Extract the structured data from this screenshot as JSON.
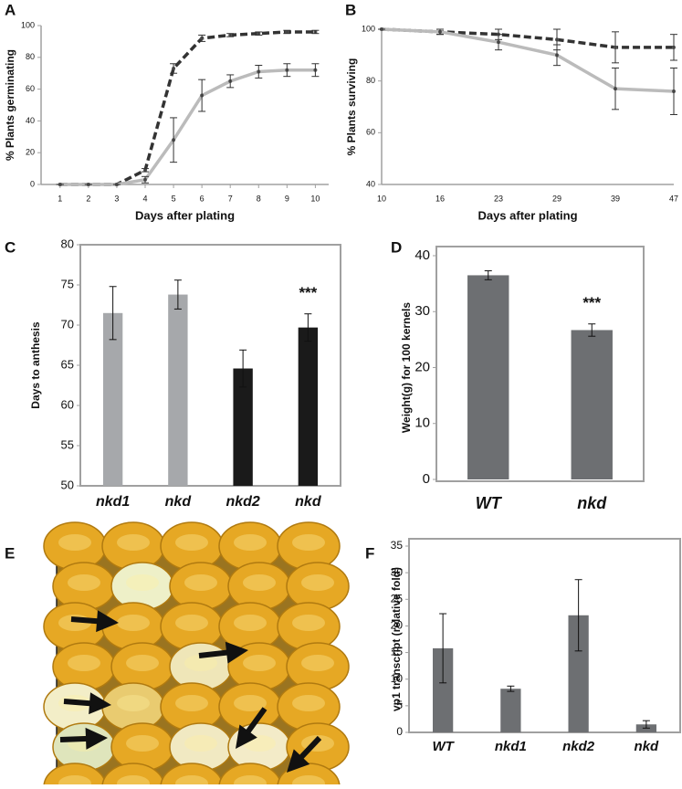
{
  "chart_data": [
    {
      "type": "line",
      "panel": "A",
      "ylabel": "% Plants germinating",
      "xlabel": "Days after plating",
      "x": [
        1,
        2,
        3,
        4,
        5,
        6,
        7,
        8,
        9,
        10
      ],
      "xlim": [
        0.33,
        10.47
      ],
      "xticks": [
        1,
        2,
        3,
        4,
        5,
        6,
        7,
        8,
        9,
        10
      ],
      "ylim": [
        0,
        100
      ],
      "yticks": [
        0,
        20,
        40,
        60,
        80,
        100
      ],
      "series": [
        {
          "color": "#333333",
          "line_style": "dashed",
          "values": [
            0,
            0,
            0,
            9,
            73,
            92,
            94,
            95,
            96,
            96
          ],
          "errors": [
            0,
            0,
            0,
            1,
            3,
            2,
            1,
            1,
            1,
            1
          ]
        },
        {
          "color": "#bbbbbb",
          "line_style": "solid",
          "values": [
            0,
            0,
            0,
            3,
            28,
            56,
            65,
            71,
            72,
            72
          ],
          "errors": [
            0,
            0,
            0,
            2,
            14,
            10,
            4,
            4,
            4,
            4
          ]
        }
      ]
    },
    {
      "type": "line",
      "panel": "B",
      "ylabel": "% Plants surviving",
      "xlabel": "Days after plating",
      "categories": [
        "10",
        "16",
        "23",
        "29",
        "39",
        "47"
      ],
      "ylim": [
        40,
        100
      ],
      "yticks": [
        40,
        60,
        80,
        100
      ],
      "series": [
        {
          "color": "#333333",
          "line_style": "dashed",
          "values": [
            100,
            99,
            98,
            96,
            93,
            93
          ],
          "errors": [
            0,
            1,
            2,
            4,
            6,
            5
          ]
        },
        {
          "color": "#bbbbbb",
          "line_style": "solid",
          "values": [
            100,
            99,
            95,
            90,
            77,
            76
          ],
          "errors": [
            0,
            1,
            3,
            4,
            8,
            9
          ]
        }
      ]
    },
    {
      "type": "bar",
      "panel": "C",
      "ylabel": "Days to anthesis",
      "annotation": "***",
      "categories": [
        "nkd1",
        "nkd",
        "nkd2",
        "nkd"
      ],
      "values": [
        71.5,
        73.8,
        64.6,
        69.7
      ],
      "errors": [
        3.3,
        1.8,
        2.3,
        1.7
      ],
      "colors": [
        "#a6a8ab",
        "#a6a8ab",
        "#1a1a1a",
        "#1a1a1a"
      ],
      "ylim": [
        50,
        80
      ],
      "yticks": [
        50,
        55,
        60,
        65,
        70,
        75,
        80
      ]
    },
    {
      "type": "bar",
      "panel": "D",
      "ylabel": "Weight(g) for 100 kernels",
      "annotation": "***",
      "categories": [
        "WT",
        "nkd"
      ],
      "values": [
        36.5,
        26.7
      ],
      "errors": [
        0.8,
        1.1
      ],
      "colors": [
        "#6d6f72",
        "#6d6f72"
      ],
      "ylim": [
        0,
        40
      ],
      "yticks": [
        0,
        10,
        20,
        30,
        40
      ]
    },
    {
      "type": "image",
      "panel": "E"
    },
    {
      "type": "bar",
      "panel": "F",
      "ylabel": "vp1 transcript (relative fold)",
      "categories": [
        "WT",
        "nkd1",
        "nkd2",
        "nkd"
      ],
      "values": [
        15.8,
        8.2,
        22,
        1.5
      ],
      "errors": [
        6.5,
        0.5,
        6.7,
        0.7
      ],
      "colors": [
        "#6d6f72",
        "#6d6f72",
        "#6d6f72",
        "#6d6f72"
      ],
      "ylim": [
        0,
        35
      ],
      "yticks": [
        0,
        5,
        10,
        15,
        20,
        25,
        30,
        35
      ]
    }
  ]
}
